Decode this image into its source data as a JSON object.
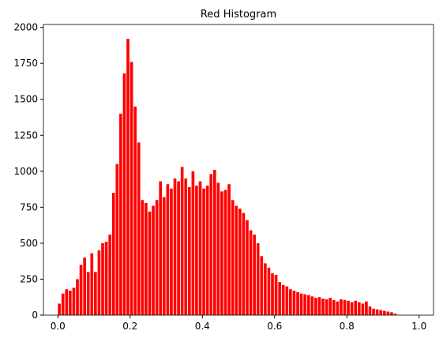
{
  "chart_data": {
    "type": "histogram",
    "title": "Red Histogram",
    "bins": [
      0.0,
      0.01,
      0.02,
      0.03,
      0.04,
      0.05,
      0.06,
      0.07,
      0.08,
      0.09,
      0.1,
      0.11,
      0.12,
      0.13,
      0.14,
      0.15,
      0.16,
      0.17,
      0.18,
      0.19,
      0.2,
      0.21,
      0.22,
      0.23,
      0.24,
      0.25,
      0.26,
      0.27,
      0.28,
      0.29,
      0.3,
      0.31,
      0.32,
      0.33,
      0.34,
      0.35,
      0.36,
      0.37,
      0.38,
      0.39,
      0.4,
      0.41,
      0.42,
      0.43,
      0.44,
      0.45,
      0.46,
      0.47,
      0.48,
      0.49,
      0.5,
      0.51,
      0.52,
      0.53,
      0.54,
      0.55,
      0.56,
      0.57,
      0.58,
      0.59,
      0.6,
      0.61,
      0.62,
      0.63,
      0.64,
      0.65,
      0.66,
      0.67,
      0.68,
      0.69,
      0.7,
      0.71,
      0.72,
      0.73,
      0.74,
      0.75,
      0.76,
      0.77,
      0.78,
      0.79,
      0.8,
      0.81,
      0.82,
      0.83,
      0.84,
      0.85,
      0.86,
      0.87,
      0.88,
      0.89,
      0.9,
      0.91,
      0.92,
      0.93,
      0.94,
      0.95,
      0.96,
      0.97,
      0.98,
      0.99,
      1.0
    ],
    "values": [
      80,
      150,
      180,
      170,
      190,
      250,
      350,
      400,
      300,
      430,
      300,
      450,
      500,
      510,
      560,
      850,
      1050,
      1400,
      1680,
      1920,
      1760,
      1450,
      1200,
      800,
      780,
      720,
      760,
      800,
      930,
      820,
      910,
      880,
      950,
      930,
      1030,
      950,
      890,
      1000,
      900,
      930,
      880,
      900,
      980,
      1010,
      920,
      860,
      870,
      910,
      800,
      760,
      740,
      710,
      660,
      590,
      560,
      500,
      410,
      360,
      330,
      290,
      280,
      230,
      210,
      200,
      180,
      170,
      160,
      150,
      145,
      140,
      130,
      120,
      125,
      115,
      110,
      120,
      105,
      95,
      110,
      105,
      100,
      90,
      100,
      90,
      80,
      95,
      60,
      45,
      40,
      35,
      30,
      25,
      20,
      10,
      0,
      0,
      0,
      0,
      0,
      0
    ],
    "color": "#ff0000",
    "xlim": [
      -0.04,
      1.04
    ],
    "xticks": [
      {
        "value": 0,
        "label": "0.0"
      },
      {
        "value": 0.2,
        "label": "0.2"
      },
      {
        "value": 0.4,
        "label": "0.4"
      },
      {
        "value": 0.6,
        "label": "0.6"
      },
      {
        "value": 0.8,
        "label": "0.8"
      },
      {
        "value": 1,
        "label": "1.0"
      }
    ],
    "ylim": [
      0,
      2020
    ],
    "yticks": [
      0,
      250,
      500,
      750,
      1000,
      1250,
      1500,
      1750,
      2000
    ]
  }
}
